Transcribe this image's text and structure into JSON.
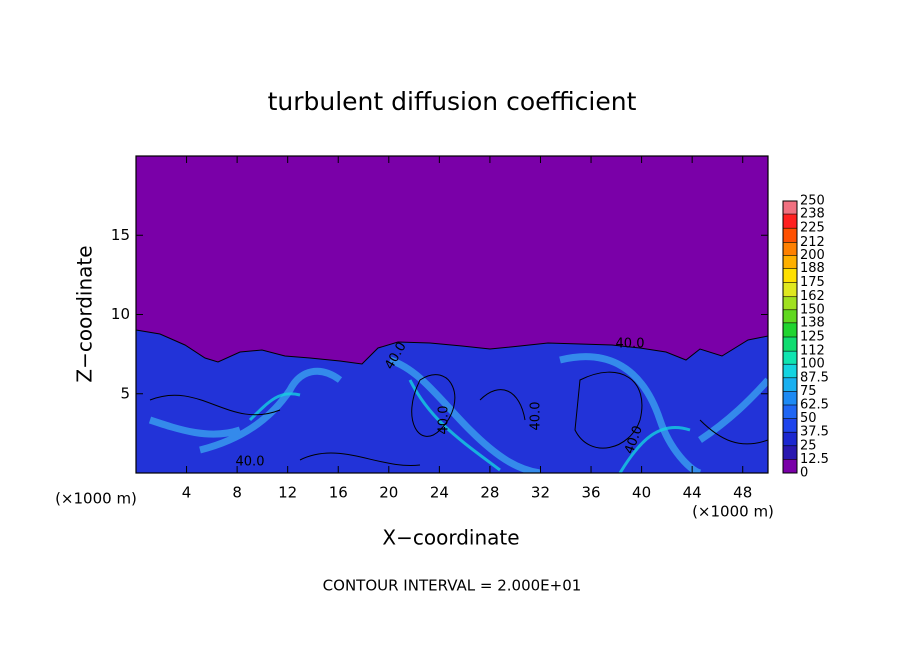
{
  "chart_data": {
    "type": "contour",
    "title": "turbulent diffusion coefficient",
    "x_label": "X−coordinate",
    "y_label": "Z−coordinate",
    "x_unit_label": "(×1000 m)",
    "y_unit_label": "(×1000 m)",
    "annotation": "CONTOUR INTERVAL = 2.000E+01",
    "contour_labels": [
      "40.0",
      "40.0",
      "40.0",
      "40.0",
      "40.0",
      "40.0"
    ],
    "xlim": [
      0,
      50
    ],
    "ylim": [
      0,
      20
    ],
    "xticks": [
      4,
      8,
      12,
      16,
      20,
      24,
      28,
      32,
      36,
      40,
      44,
      48
    ],
    "yticks": [
      5,
      10,
      15
    ],
    "grid": false,
    "colorbar": {
      "lim": [
        0,
        250
      ],
      "ticks": [
        0,
        12.5,
        25,
        37.5,
        50,
        62.5,
        75,
        87.5,
        100,
        112,
        125,
        138,
        150,
        162,
        175,
        188,
        200,
        212,
        225,
        238,
        250
      ],
      "colors": [
        "#7a00a8",
        "#2a18b0",
        "#1c28d0",
        "#1e44ec",
        "#1f66f4",
        "#1d8af4",
        "#19b0f0",
        "#14d4e0",
        "#10e4b0",
        "#10dc70",
        "#20d430",
        "#60d820",
        "#a0e020",
        "#e0e820",
        "#ffe000",
        "#ffb000",
        "#ff8000",
        "#ff5000",
        "#ff2020",
        "#f07080"
      ]
    }
  }
}
